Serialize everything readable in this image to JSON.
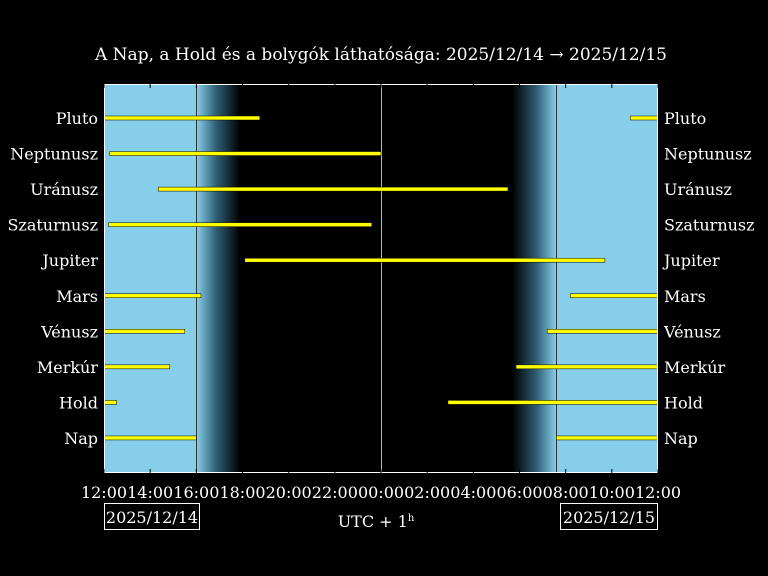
{
  "chart_data": {
    "type": "timeline",
    "title": "A Nap, a Hold és a bolygók láthatósága: 2025/12/14 → 2025/12/15",
    "xlabel": "UTC + 1",
    "xlabel_superscript": "h",
    "date_start": "2025/12/14",
    "date_end": "2025/12/15",
    "x_ticks": [
      "12:00",
      "14:00",
      "16:00",
      "18:00",
      "20:00",
      "22:00",
      "00:00",
      "02:00",
      "04:00",
      "06:00",
      "08:00",
      "10:00",
      "12:00"
    ],
    "x_range_hours": [
      0,
      24
    ],
    "midnight_hour": 12,
    "daylight": [
      {
        "start": 0,
        "end": 4.0
      },
      {
        "start": 19.6,
        "end": 24
      }
    ],
    "twilight": [
      {
        "start": 4.0,
        "end": 5.9,
        "direction": "dusk"
      },
      {
        "start": 17.7,
        "end": 19.6,
        "direction": "dawn"
      }
    ],
    "marker_lines": [
      4.0,
      12.0,
      19.6
    ],
    "bar_color": "#ffff00",
    "day_color": "#87ceeb",
    "rows": [
      {
        "name": "Pluto",
        "segments": [
          [
            0,
            6.75
          ],
          [
            22.8,
            24
          ]
        ]
      },
      {
        "name": "Neptunusz",
        "segments": [
          [
            0.25,
            12.0
          ]
        ]
      },
      {
        "name": "Uránusz",
        "segments": [
          [
            2.35,
            17.5
          ]
        ]
      },
      {
        "name": "Szaturnusz",
        "segments": [
          [
            0.2,
            11.6
          ]
        ]
      },
      {
        "name": "Jupiter",
        "segments": [
          [
            6.1,
            21.7
          ]
        ]
      },
      {
        "name": "Mars",
        "segments": [
          [
            0,
            4.2
          ],
          [
            20.2,
            24
          ]
        ]
      },
      {
        "name": "Vénusz",
        "segments": [
          [
            0,
            3.5
          ],
          [
            19.2,
            24
          ]
        ]
      },
      {
        "name": "Merkúr",
        "segments": [
          [
            0,
            2.85
          ],
          [
            17.85,
            24
          ]
        ]
      },
      {
        "name": "Hold",
        "segments": [
          [
            0,
            0.55
          ],
          [
            14.9,
            24
          ]
        ]
      },
      {
        "name": "Nap",
        "segments": [
          [
            0,
            4.0
          ],
          [
            19.6,
            24
          ]
        ]
      }
    ]
  }
}
